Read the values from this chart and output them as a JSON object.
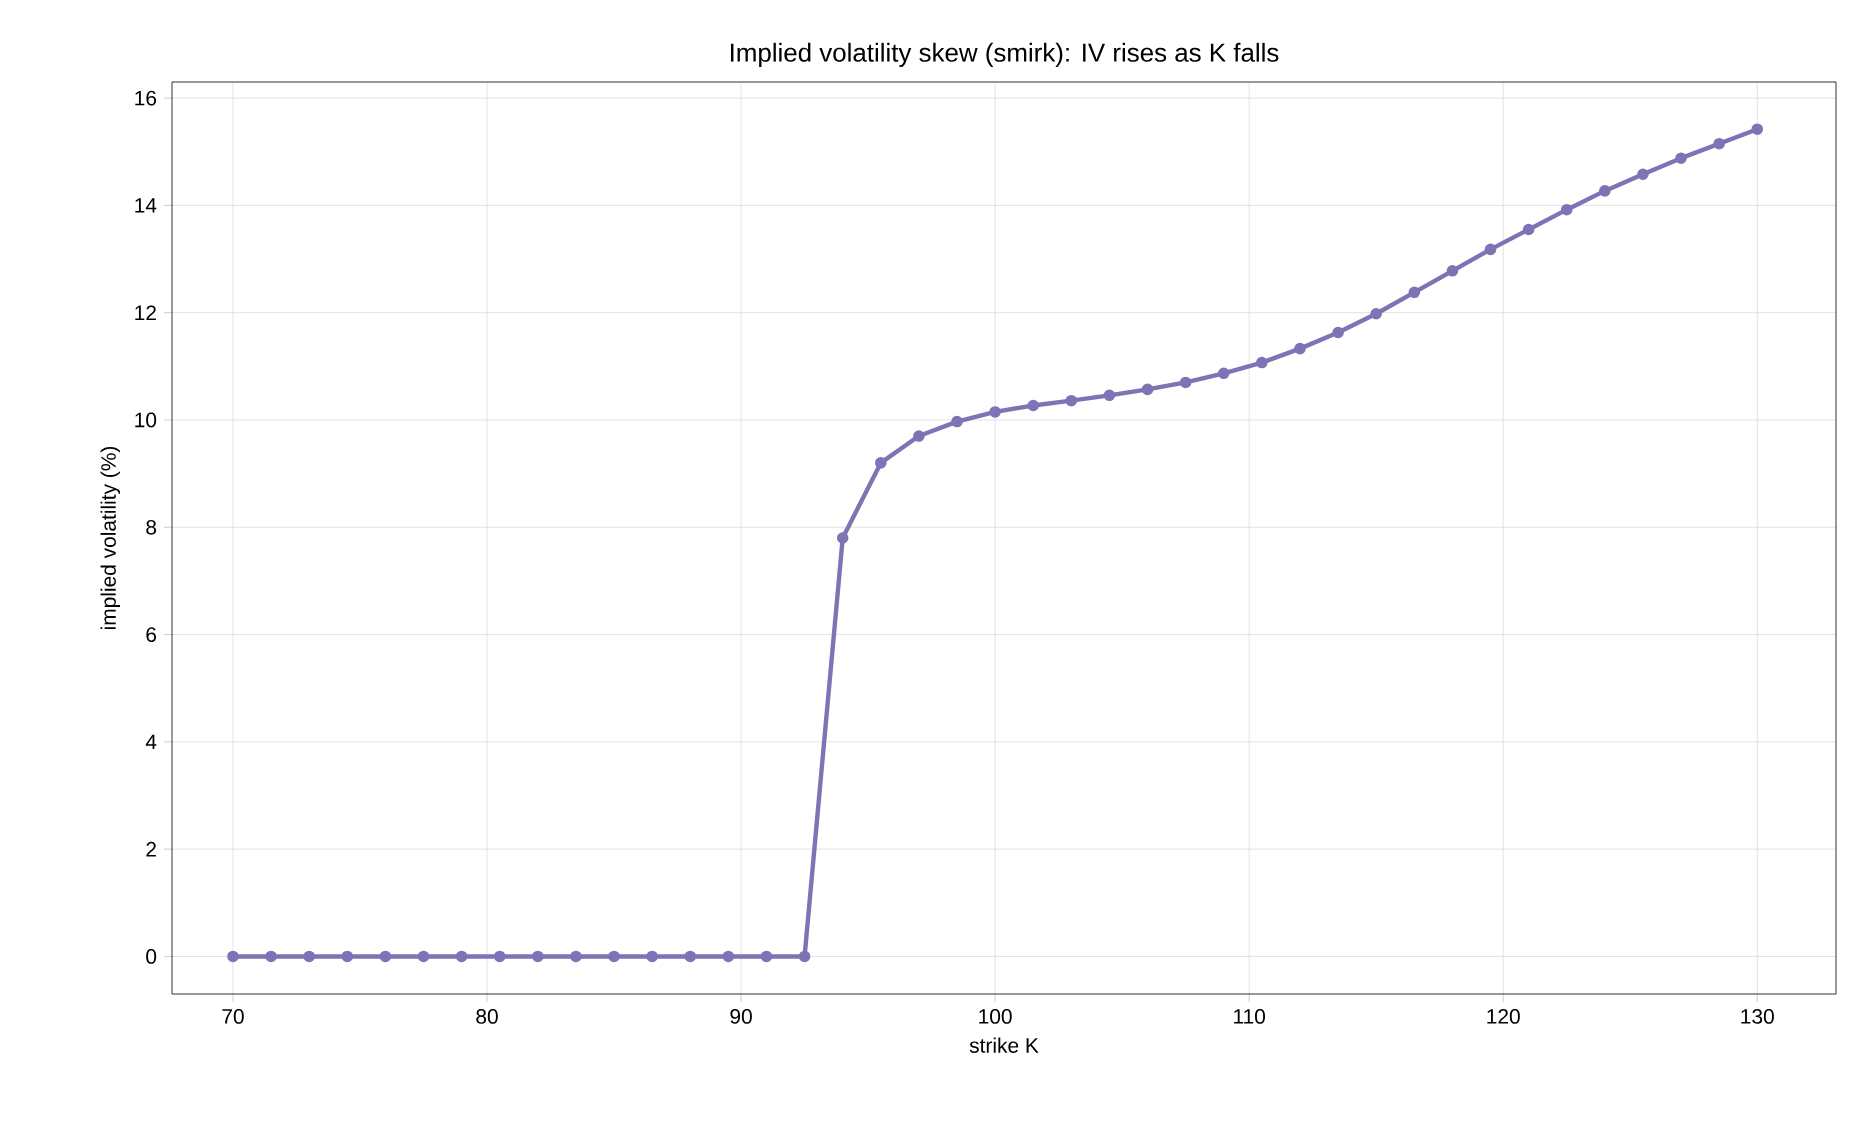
{
  "chart_data": {
    "type": "line",
    "title": "Implied volatility skew (smirk): IV rises as K falls",
    "xlabel": "strike K",
    "ylabel": "implied volatility (%)",
    "x": [
      70,
      71.5,
      73,
      74.5,
      76,
      77.5,
      79,
      80.5,
      82,
      83.5,
      85,
      86.5,
      88,
      89.5,
      91,
      92.5,
      94,
      95.5,
      97,
      98.5,
      100,
      101.5,
      103,
      104.5,
      106,
      107.5,
      109,
      110.5,
      112,
      113.5,
      115,
      116.5,
      118,
      119.5,
      121,
      122.5,
      124,
      125.5,
      127,
      128.5,
      130
    ],
    "series": [
      {
        "color": "#7f72b5",
        "values": [
          0,
          0,
          0,
          0,
          0,
          0,
          0,
          0,
          0,
          0,
          0,
          0,
          0,
          0,
          0,
          0,
          7.8,
          9.2,
          9.7,
          9.97,
          10.15,
          10.27,
          10.36,
          10.46,
          10.57,
          10.7,
          10.87,
          11.07,
          11.33,
          11.63,
          11.98,
          12.38,
          12.78,
          13.18,
          13.55,
          13.92,
          14.27,
          14.58,
          14.88,
          15.15,
          15.42
        ]
      }
    ],
    "xlim": [
      67.6,
      133.1
    ],
    "ylim": [
      -0.7,
      16.3
    ],
    "xticks": [
      70,
      80,
      90,
      100,
      110,
      120,
      130
    ],
    "yticks": [
      0,
      2,
      4,
      6,
      8,
      10,
      12,
      14,
      16
    ],
    "grid": true,
    "marker": "circle",
    "line_style": "solid"
  }
}
